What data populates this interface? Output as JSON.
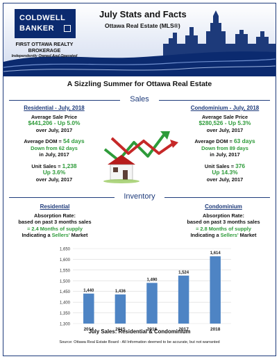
{
  "header": {
    "logo_line1": "COLDWELL",
    "logo_line2": "BANKER",
    "brokerage_line1": "FIRST OTTAWA REALTY",
    "brokerage_line2": "BROKERAGE",
    "brokerage_line3": "Independently Owned And Operated",
    "title": "July Stats and Facts",
    "subtitle": "Ottawa Real Estate (MLS®)",
    "banner": "A Sizzling Summer for Ottawa Real Estate"
  },
  "sales": {
    "section_title": "Sales",
    "residential": {
      "heading": "Residential - July, 2018",
      "avg_price_label": "Average Sale Price",
      "avg_price_value": "$441,206 - Up 5.0%",
      "avg_price_compare": "over July, 2017",
      "dom_label": "Average DOM =",
      "dom_value": "54 days",
      "dom_down": "Down from 62 days",
      "dom_compare": "in July, 2017",
      "unit_label": "Unit Sales =",
      "unit_value": "1,238",
      "unit_up": "Up 3.6%",
      "unit_compare": "over July, 2017"
    },
    "condominium": {
      "heading": "Condominium - July, 2018",
      "avg_price_label": "Average Sale Price",
      "avg_price_value": "$280,526 - Up 5.3%",
      "avg_price_compare": "over July, 2017",
      "dom_label": "Average DOM =",
      "dom_value": "63 days",
      "dom_down": "Down from 89 days",
      "dom_compare": "in July, 2017",
      "unit_label": "Unit Sales =",
      "unit_value": "376",
      "unit_up": "Up 14.3%",
      "unit_compare": "over July, 2017"
    }
  },
  "inventory": {
    "section_title": "Inventory",
    "residential": {
      "heading": "Residential",
      "line1": "Absorption Rate:",
      "line2": "based on past 3 months sales",
      "line3": "= 2.4 Months of supply",
      "line4a": "Indicating a ",
      "line4b": "Sellers'",
      "line4c": " Market"
    },
    "condominium": {
      "heading": "Condominium",
      "line1": "Absorption Rate:",
      "line2": "based on past 3 months sales",
      "line3": "= 2.8 Months of supply",
      "line4a": "Indicating a ",
      "line4b": "Sellers'",
      "line4c": " Market"
    }
  },
  "colors": {
    "navy": "#1d3a7a",
    "green": "#2e9b3a",
    "bar": "#4e84c4"
  },
  "chart_data": {
    "type": "bar",
    "categories": [
      "2014",
      "2015",
      "2016",
      "2017",
      "2018"
    ],
    "values": [
      1440,
      1436,
      1490,
      1524,
      1614
    ],
    "data_labels": [
      "1,440",
      "1,436",
      "1,490",
      "1,524",
      "1,614"
    ],
    "ylim": [
      1300,
      1650
    ],
    "yticks": [
      1300,
      1350,
      1400,
      1450,
      1500,
      1550,
      1600,
      1650
    ],
    "ytick_labels": [
      "1,300",
      "1,350",
      "1,400",
      "1,450",
      "1,500",
      "1,550",
      "1,600",
      "1,650"
    ],
    "grid": true,
    "caption": "July Sales: Residential & Condominium"
  },
  "footer": {
    "source": "Source: Ottawa Real Estate Board - All Information deemed to be accurate, but not warranted"
  }
}
